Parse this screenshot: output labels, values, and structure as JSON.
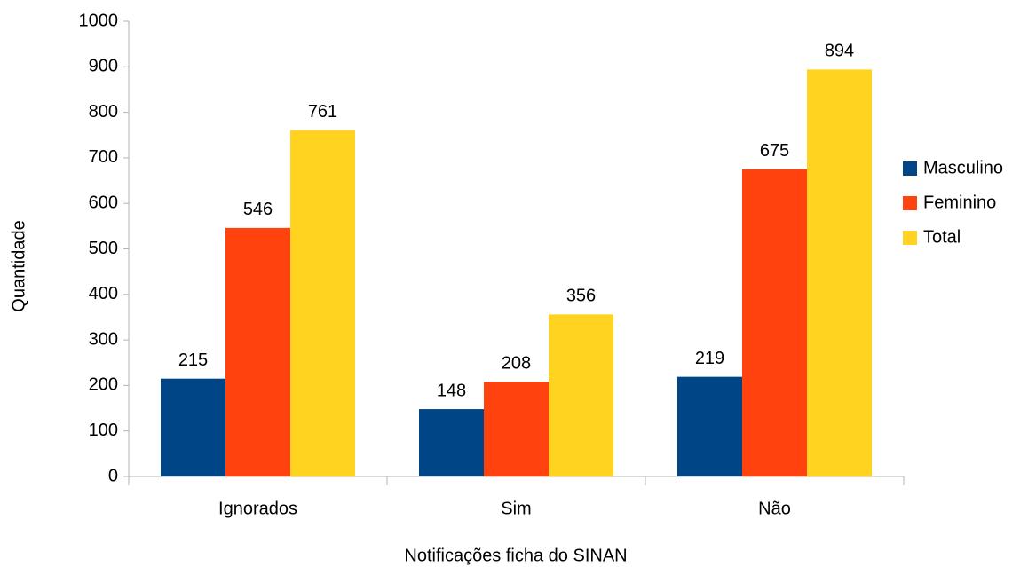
{
  "chart_data": {
    "type": "bar",
    "x_label": "Notificações ficha do SINAN",
    "y_label": "Quantidade",
    "categories": [
      "Ignorados",
      "Sim",
      "Não"
    ],
    "series": [
      {
        "name": "Masculino",
        "color": "#004586",
        "values": [
          215,
          148,
          219
        ]
      },
      {
        "name": "Feminino",
        "color": "#ff420e",
        "values": [
          546,
          208,
          675
        ]
      },
      {
        "name": "Total",
        "color": "#ffd320",
        "values": [
          761,
          356,
          894
        ]
      }
    ],
    "ylim": [
      0,
      1000
    ],
    "yticks": [
      0,
      100,
      200,
      300,
      400,
      500,
      600,
      700,
      800,
      900,
      1000
    ],
    "grid": false,
    "legend": "right",
    "data_labels": true
  }
}
